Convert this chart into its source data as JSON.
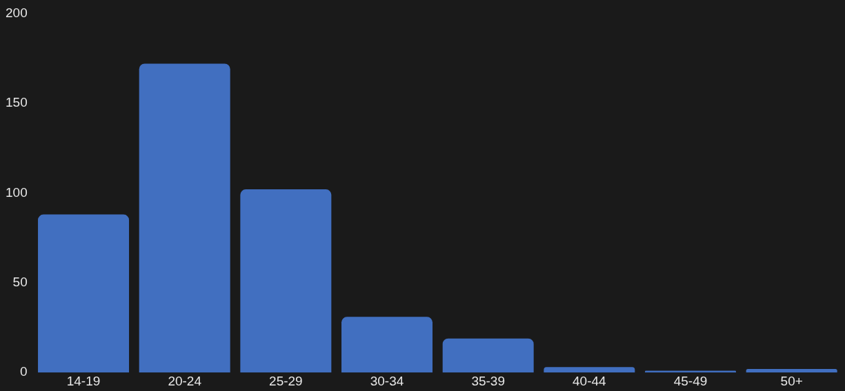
{
  "chart_data": {
    "type": "bar",
    "categories": [
      "14-19",
      "20-24",
      "25-29",
      "30-34",
      "35-39",
      "40-44",
      "45-49",
      "50+"
    ],
    "values": [
      88,
      172,
      102,
      31,
      19,
      3,
      1,
      2
    ],
    "color": "#416fc0",
    "ylim": [
      0,
      200
    ],
    "yticks": [
      0,
      50,
      100,
      150,
      200
    ],
    "grid": false
  }
}
